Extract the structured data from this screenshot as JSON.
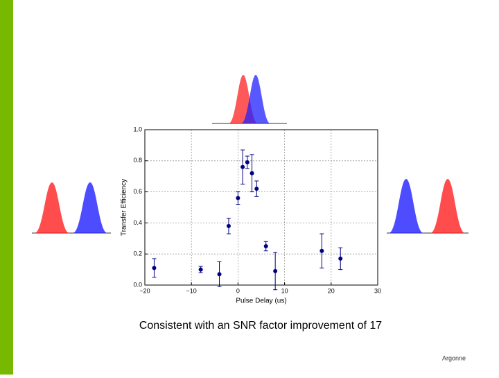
{
  "chart_data": {
    "type": "scatter",
    "xlabel": "Pulse Delay (us)",
    "ylabel": "Transfer Efficiency",
    "caption": "Consistent with an SNR factor improvement of 17",
    "logo": "Argonne",
    "x": [
      -18,
      -8,
      -4,
      -2,
      0,
      1,
      2,
      3,
      4,
      6,
      8,
      18,
      22
    ],
    "series": [
      {
        "name": "Transfer Efficiency",
        "color": "#000080",
        "values": [
          0.11,
          0.1,
          0.07,
          0.38,
          0.56,
          0.76,
          0.79,
          0.72,
          0.62,
          0.25,
          0.09,
          0.22,
          0.17
        ],
        "errors": [
          0.06,
          0.02,
          0.08,
          0.05,
          0.04,
          0.11,
          0.04,
          0.12,
          0.05,
          0.03,
          0.12,
          0.11,
          0.07
        ]
      }
    ],
    "xlim": [
      -20,
      30
    ],
    "xticks": [
      {
        "value": -20,
        "label": "−20"
      },
      {
        "value": -10,
        "label": "−10"
      },
      0,
      10,
      20,
      30
    ],
    "ylim": [
      0,
      1
    ],
    "yticks": [
      {
        "value": 0,
        "label": "0.0"
      },
      0.2,
      0.4,
      0.6,
      0.8,
      {
        "value": 1,
        "label": "1.0"
      }
    ],
    "grid": true
  }
}
